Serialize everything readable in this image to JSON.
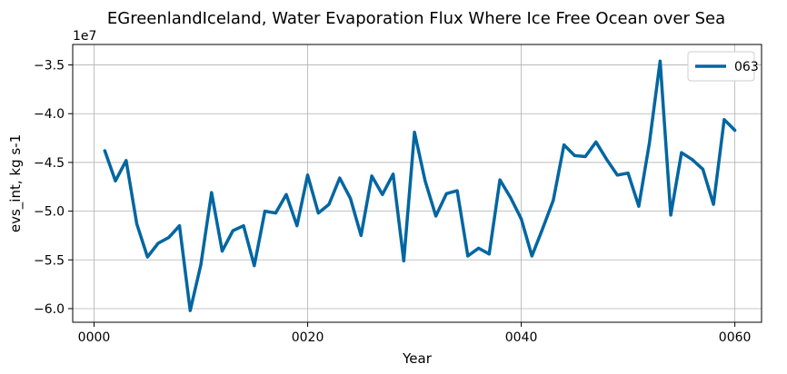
{
  "chart_data": {
    "type": "line",
    "title": "EGreenlandIceland, Water Evaporation Flux Where Ice Free Ocean over Sea",
    "xlabel": "Year",
    "ylabel": "evs_int, kg s-1",
    "y_offset_label": "1e7",
    "x_ticks": [
      0,
      20,
      40,
      60
    ],
    "x_tick_labels": [
      "0000",
      "0020",
      "0040",
      "0060"
    ],
    "y_ticks": [
      -6.0,
      -5.5,
      -5.0,
      -4.5,
      -4.0,
      -3.5
    ],
    "y_tick_labels": [
      "−6.0",
      "−5.5",
      "−5.0",
      "−4.5",
      "−4.0",
      "−3.5"
    ],
    "xlim": [
      -2,
      62.5
    ],
    "ylim": [
      -6.14,
      -3.29
    ],
    "grid": true,
    "legend": "top-right",
    "series": [
      {
        "name": "063",
        "color": "#0066a1",
        "x": [
          1,
          2,
          3,
          4,
          5,
          6,
          7,
          8,
          9,
          10,
          11,
          12,
          13,
          14,
          15,
          16,
          17,
          18,
          19,
          20,
          21,
          22,
          23,
          24,
          25,
          26,
          27,
          28,
          29,
          30,
          31,
          32,
          33,
          34,
          35,
          36,
          37,
          38,
          39,
          40,
          41,
          42,
          43,
          44,
          45,
          46,
          47,
          48,
          49,
          50,
          51,
          52,
          53,
          54,
          55,
          56,
          57,
          58,
          59,
          60
        ],
        "values": [
          -4.38,
          -4.69,
          -4.48,
          -5.13,
          -5.47,
          -5.33,
          -5.27,
          -5.15,
          -6.02,
          -5.55,
          -4.81,
          -5.41,
          -5.2,
          -5.15,
          -5.56,
          -5.0,
          -5.02,
          -4.83,
          -5.15,
          -4.63,
          -5.02,
          -4.93,
          -4.66,
          -4.87,
          -5.25,
          -4.64,
          -4.83,
          -4.62,
          -5.51,
          -4.19,
          -4.69,
          -5.05,
          -4.82,
          -4.79,
          -5.46,
          -5.38,
          -5.44,
          -4.68,
          -4.86,
          -5.08,
          -5.46,
          -5.18,
          -4.89,
          -4.32,
          -4.43,
          -4.44,
          -4.29,
          -4.47,
          -4.63,
          -4.61,
          -4.95,
          -4.3,
          -3.46,
          -5.04,
          -4.4,
          -4.47,
          -4.57,
          -4.93,
          -4.06,
          -4.17
        ]
      }
    ]
  }
}
